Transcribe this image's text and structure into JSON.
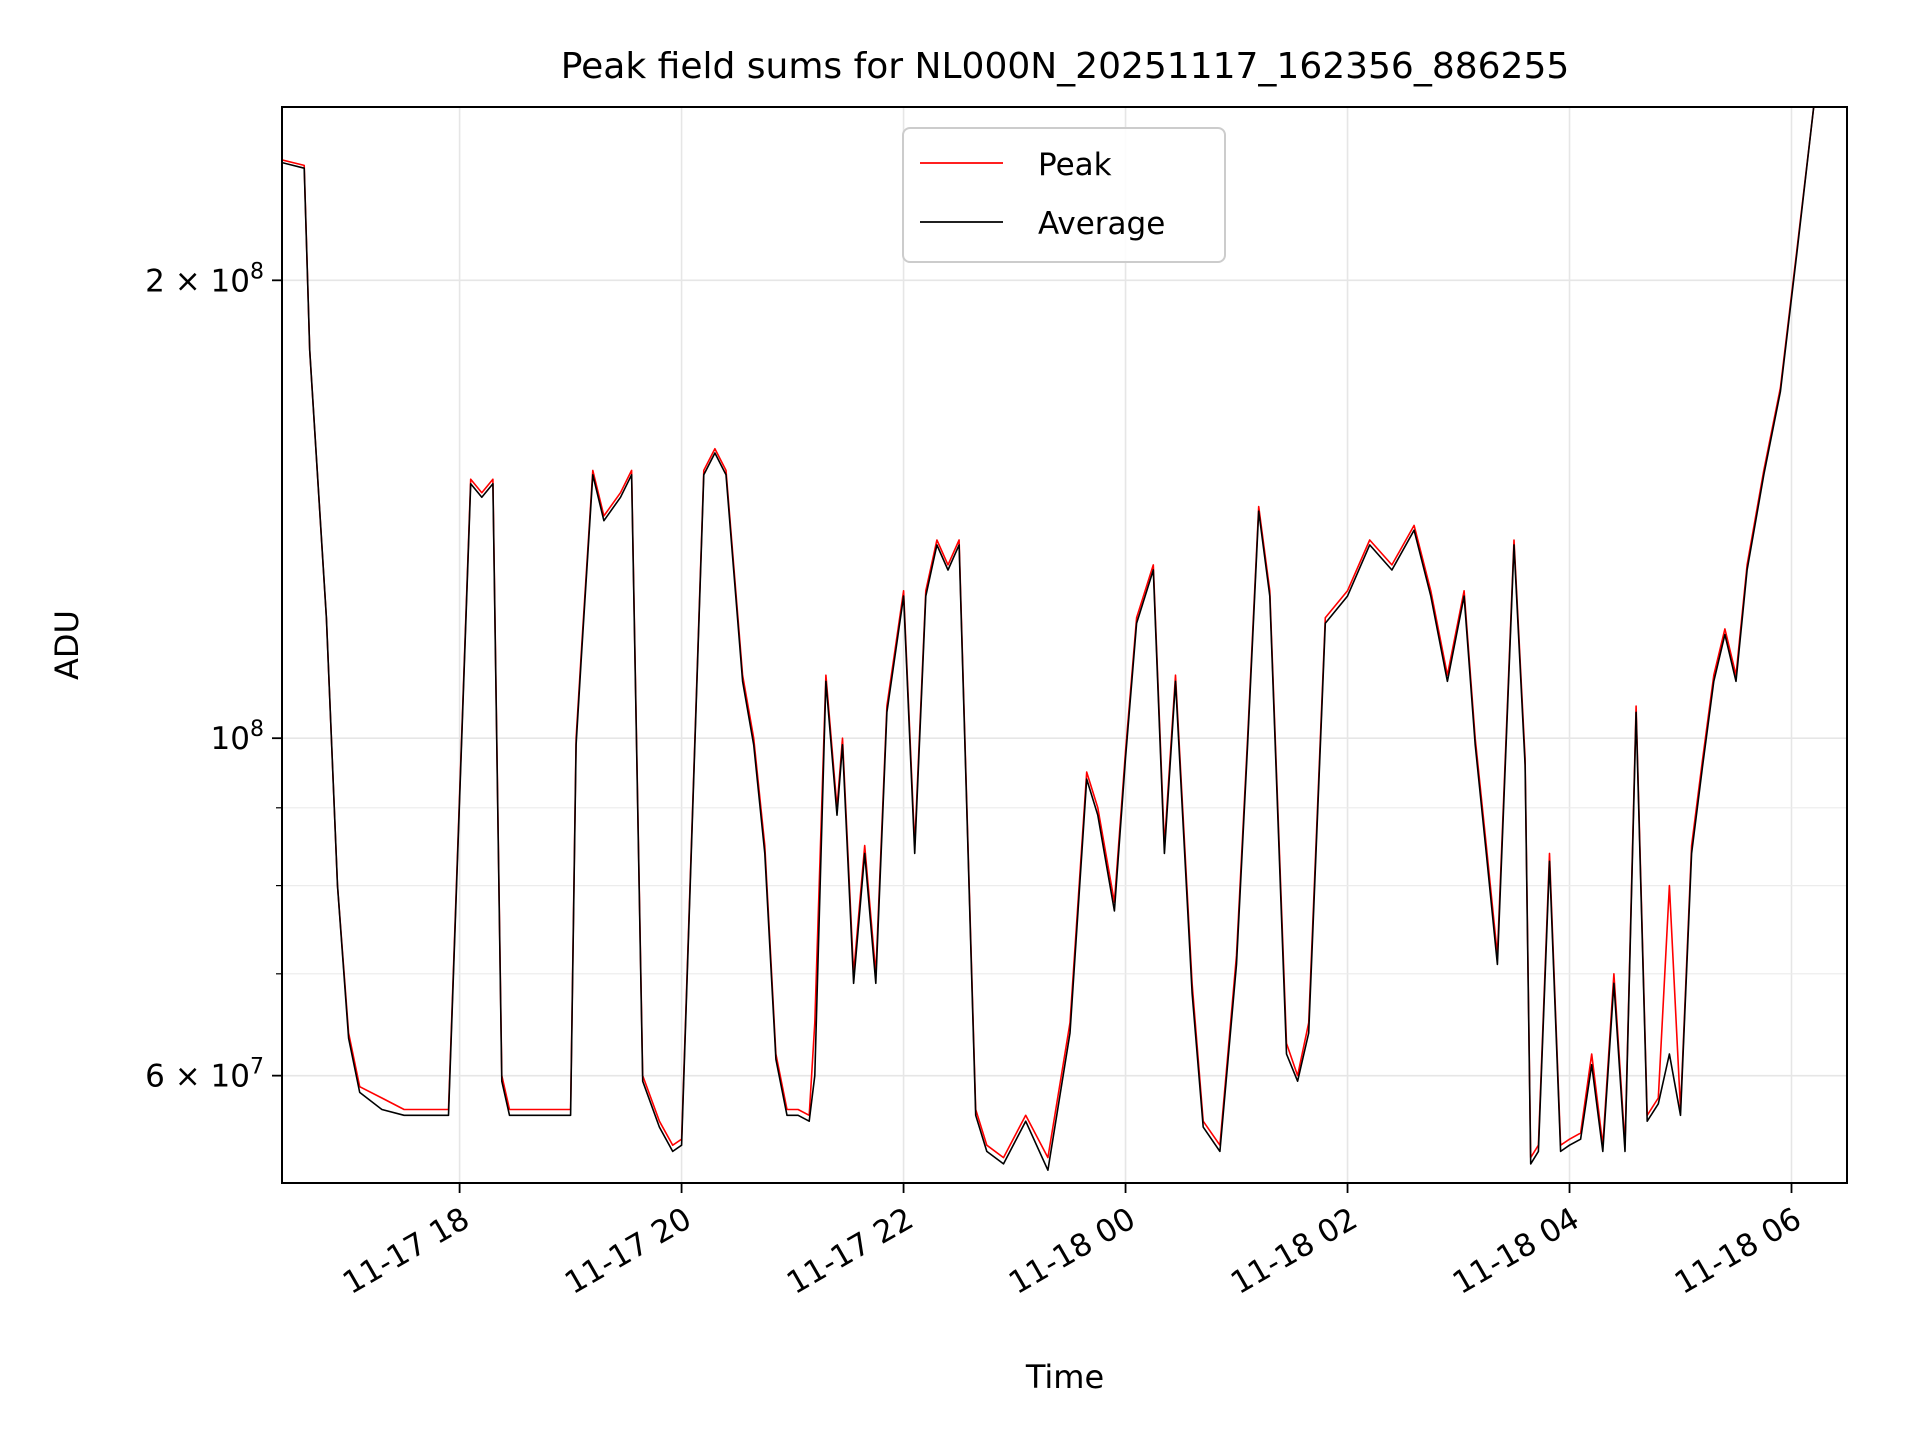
{
  "chart_data": {
    "type": "line",
    "title": "Peak field sums for NL000N_20251117_162356_886255",
    "xlabel": "Time",
    "ylabel": "ADU",
    "yscale": "log",
    "xlim_hours": [
      -1.6,
      12.5
    ],
    "ylim": [
      51000000,
      260000000
    ],
    "grid": true,
    "legend_position": "top-center",
    "x_ticks": [
      {
        "hours": 0,
        "label": "11-17 18"
      },
      {
        "hours": 2,
        "label": "11-17 20"
      },
      {
        "hours": 4,
        "label": "11-17 22"
      },
      {
        "hours": 6,
        "label": "11-18 00"
      },
      {
        "hours": 8,
        "label": "11-18 02"
      },
      {
        "hours": 10,
        "label": "11-18 04"
      },
      {
        "hours": 12,
        "label": "11-18 06"
      }
    ],
    "y_ticks": [
      {
        "value": 200000000,
        "mantissa": "2 × 10",
        "exp": "8"
      },
      {
        "value": 100000000,
        "mantissa": "10",
        "exp": "8"
      },
      {
        "value": 60000000,
        "mantissa": "6 × 10",
        "exp": "7"
      }
    ],
    "y_minor_ticks": [
      70000000,
      80000000,
      90000000
    ],
    "series": [
      {
        "name": "Peak",
        "color": "#ff0000",
        "x_hours": [
          -1.6,
          -1.4,
          -1.35,
          -1.2,
          -1.1,
          -1.0,
          -0.9,
          -0.7,
          -0.5,
          -0.3,
          -0.1,
          0.1,
          0.2,
          0.3,
          0.38,
          0.45,
          0.55,
          0.7,
          1.0,
          1.05,
          1.1,
          1.2,
          1.3,
          1.45,
          1.55,
          1.65,
          1.8,
          1.92,
          2.0,
          2.2,
          2.3,
          2.4,
          2.55,
          2.65,
          2.75,
          2.85,
          2.95,
          3.05,
          3.15,
          3.2,
          3.3,
          3.4,
          3.45,
          3.55,
          3.65,
          3.75,
          3.85,
          4.0,
          4.1,
          4.2,
          4.3,
          4.4,
          4.5,
          4.65,
          4.75,
          4.9,
          5.1,
          5.3,
          5.5,
          5.65,
          5.75,
          5.9,
          6.0,
          6.1,
          6.25,
          6.35,
          6.45,
          6.6,
          6.7,
          6.85,
          7.0,
          7.1,
          7.2,
          7.3,
          7.45,
          7.55,
          7.65,
          7.8,
          8.0,
          8.2,
          8.4,
          8.6,
          8.75,
          8.9,
          9.05,
          9.15,
          9.25,
          9.35,
          9.5,
          9.6,
          9.65,
          9.72,
          9.82,
          9.92,
          10.0,
          10.1,
          10.2,
          10.3,
          10.4,
          10.5,
          10.6,
          10.7,
          10.8,
          10.9,
          11.0,
          11.1,
          11.2,
          11.3,
          11.4,
          11.5,
          11.6,
          11.75,
          11.9,
          12.05,
          12.2,
          12.35,
          12.5
        ],
        "values": [
          240000000,
          238000000,
          180000000,
          120000000,
          80000000,
          64000000,
          59000000,
          58000000,
          57000000,
          57000000,
          57000000,
          148000000,
          145000000,
          148000000,
          60000000,
          57000000,
          57000000,
          57000000,
          57000000,
          100000000,
          115000000,
          150000000,
          140000000,
          145000000,
          150000000,
          60000000,
          56000000,
          54000000,
          54500000,
          150000000,
          155000000,
          150000000,
          110000000,
          100000000,
          85000000,
          62000000,
          57000000,
          57000000,
          56500000,
          65000000,
          110000000,
          90000000,
          100000000,
          70000000,
          85000000,
          70000000,
          105000000,
          125000000,
          85000000,
          125000000,
          135000000,
          130000000,
          135000000,
          57000000,
          54000000,
          53000000,
          56500000,
          53000000,
          65000000,
          95000000,
          90000000,
          78000000,
          98000000,
          120000000,
          130000000,
          85000000,
          110000000,
          69000000,
          56000000,
          54000000,
          72000000,
          100000000,
          142000000,
          125000000,
          63000000,
          60000000,
          65000000,
          120000000,
          125000000,
          135000000,
          130000000,
          138000000,
          125000000,
          110000000,
          125000000,
          100000000,
          85000000,
          72000000,
          135000000,
          97000000,
          53000000,
          54000000,
          84000000,
          54000000,
          54500000,
          55000000,
          62000000,
          54000000,
          70000000,
          54000000,
          105000000,
          56500000,
          58000000,
          80000000,
          57000000,
          85000000,
          97000000,
          110000000,
          118000000,
          110000000,
          130000000,
          150000000,
          170000000,
          210000000,
          260000000,
          260000000,
          260000000
        ]
      },
      {
        "name": "Average",
        "color": "#000000",
        "x_hours": [
          -1.6,
          -1.4,
          -1.35,
          -1.2,
          -1.1,
          -1.0,
          -0.9,
          -0.7,
          -0.5,
          -0.3,
          -0.1,
          0.1,
          0.2,
          0.3,
          0.38,
          0.45,
          0.55,
          0.7,
          1.0,
          1.05,
          1.1,
          1.2,
          1.3,
          1.45,
          1.55,
          1.65,
          1.8,
          1.92,
          2.0,
          2.2,
          2.3,
          2.4,
          2.55,
          2.65,
          2.75,
          2.85,
          2.95,
          3.05,
          3.15,
          3.2,
          3.3,
          3.4,
          3.45,
          3.55,
          3.65,
          3.75,
          3.85,
          4.0,
          4.1,
          4.2,
          4.3,
          4.4,
          4.5,
          4.65,
          4.75,
          4.9,
          5.1,
          5.3,
          5.5,
          5.65,
          5.75,
          5.9,
          6.0,
          6.1,
          6.25,
          6.35,
          6.45,
          6.6,
          6.7,
          6.85,
          7.0,
          7.1,
          7.2,
          7.3,
          7.45,
          7.55,
          7.65,
          7.8,
          8.0,
          8.2,
          8.4,
          8.6,
          8.75,
          8.9,
          9.05,
          9.15,
          9.25,
          9.35,
          9.5,
          9.6,
          9.65,
          9.72,
          9.82,
          9.92,
          10.0,
          10.1,
          10.2,
          10.3,
          10.4,
          10.5,
          10.6,
          10.7,
          10.8,
          10.9,
          11.0,
          11.1,
          11.2,
          11.3,
          11.4,
          11.5,
          11.6,
          11.75,
          11.9,
          12.05,
          12.2,
          12.35,
          12.5
        ],
        "values": [
          239000000,
          237000000,
          180000000,
          120000000,
          80000000,
          63500000,
          58500000,
          57000000,
          56500000,
          56500000,
          56500000,
          147000000,
          144000000,
          147000000,
          59500000,
          56500000,
          56500000,
          56500000,
          56500000,
          99000000,
          114000000,
          149000000,
          139000000,
          144000000,
          149000000,
          59500000,
          55500000,
          53500000,
          54000000,
          149000000,
          154000000,
          149000000,
          109000000,
          99000000,
          84000000,
          61500000,
          56500000,
          56500000,
          56000000,
          60000000,
          109000000,
          89000000,
          99000000,
          69000000,
          84000000,
          69000000,
          104000000,
          124000000,
          84000000,
          124000000,
          134000000,
          129000000,
          134000000,
          56500000,
          53500000,
          52500000,
          56000000,
          52000000,
          64000000,
          94000000,
          89000000,
          77000000,
          97000000,
          119000000,
          129000000,
          84000000,
          109000000,
          68000000,
          55500000,
          53500000,
          71000000,
          99000000,
          141000000,
          124000000,
          62000000,
          59500000,
          64000000,
          119000000,
          124000000,
          134000000,
          129000000,
          137000000,
          124000000,
          109000000,
          124000000,
          99000000,
          84000000,
          71000000,
          134000000,
          96000000,
          52500000,
          53500000,
          83000000,
          53500000,
          54000000,
          54500000,
          61000000,
          53500000,
          69000000,
          53500000,
          104000000,
          56000000,
          57500000,
          62000000,
          56500000,
          84000000,
          96000000,
          109000000,
          117000000,
          109000000,
          129000000,
          149000000,
          169000000,
          209000000,
          260000000,
          260000000,
          260000000
        ]
      }
    ]
  }
}
